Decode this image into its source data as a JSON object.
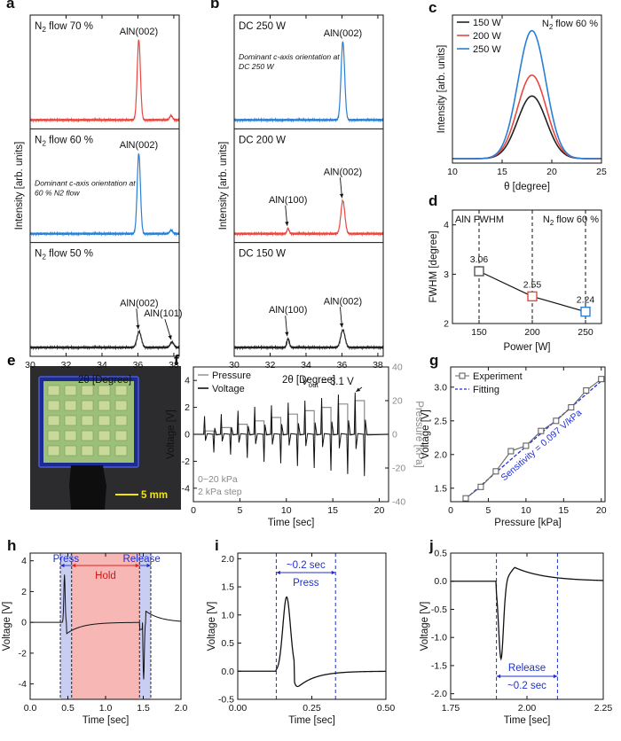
{
  "chart_data": [
    {
      "id": "a",
      "type": "line",
      "panel_label": "a",
      "xlabel": "2θ [Degree]",
      "ylabel": "Intensity [arb. units]",
      "xlim": [
        30,
        38.3
      ],
      "xticks": [
        30,
        32,
        34,
        36,
        38
      ],
      "series": [
        {
          "name": "N2 flow 70 %",
          "color": "#e8483f",
          "peaks": [
            {
              "x": 36.05,
              "h": 0.92,
              "w": 0.09,
              "label": "AlN(002)"
            },
            {
              "x": 37.85,
              "h": 0.05,
              "w": 0.08,
              "label": ""
            }
          ]
        },
        {
          "name": "N2 flow 60 %",
          "color": "#2a7fd4",
          "annotation": "Dominant c-axis orientation at 60 % N2 flow",
          "peaks": [
            {
              "x": 36.05,
              "h": 0.92,
              "w": 0.09,
              "label": "AlN(002)"
            },
            {
              "x": 37.85,
              "h": 0.04,
              "w": 0.08,
              "label": ""
            }
          ]
        },
        {
          "name": "N2 flow 50 %",
          "color": "#222222",
          "peaks": [
            {
              "x": 36.07,
              "h": 0.18,
              "w": 0.12,
              "label": "AlN(002)"
            },
            {
              "x": 37.9,
              "h": 0.06,
              "w": 0.1,
              "label": "AlN(101)"
            }
          ]
        }
      ]
    },
    {
      "id": "b",
      "type": "line",
      "panel_label": "b",
      "xlabel": "2θ [Degree]",
      "ylabel": "Intensity [arb. units]",
      "xlim": [
        30,
        38.3
      ],
      "xticks": [
        30,
        32,
        34,
        36,
        38
      ],
      "series": [
        {
          "name": "DC 250 W",
          "color": "#2a7fd4",
          "annotation": "Dominant c-axis orientation at DC 250 W",
          "peaks": [
            {
              "x": 36.05,
              "h": 0.9,
              "w": 0.1,
              "label": "AlN(002)"
            }
          ]
        },
        {
          "name": "DC 200 W",
          "color": "#e8483f",
          "peaks": [
            {
              "x": 33.0,
              "h": 0.06,
              "w": 0.06,
              "label": "AlN(100)"
            },
            {
              "x": 36.05,
              "h": 0.38,
              "w": 0.11,
              "label": "AlN(002)"
            }
          ]
        },
        {
          "name": "DC 150 W",
          "color": "#222222",
          "peaks": [
            {
              "x": 33.0,
              "h": 0.1,
              "w": 0.07,
              "label": "AlN(100)"
            },
            {
              "x": 36.05,
              "h": 0.2,
              "w": 0.12,
              "label": "AlN(002)"
            }
          ]
        }
      ]
    },
    {
      "id": "c",
      "type": "line",
      "panel_label": "c",
      "xlabel": "θ [degree]",
      "ylabel": "Intensity [arb. units]",
      "xlim": [
        10,
        25
      ],
      "xticks": [
        10,
        15,
        20,
        25
      ],
      "annotation": "N2 flow 60 %",
      "series": [
        {
          "name": "150 W",
          "color": "#222222",
          "center": 18,
          "amplitude": 0.45,
          "sigma": 1.45
        },
        {
          "name": "200 W",
          "color": "#e8483f",
          "center": 18,
          "amplitude": 0.6,
          "sigma": 1.45
        },
        {
          "name": "250 W",
          "color": "#2a7fd4",
          "center": 18,
          "amplitude": 0.92,
          "sigma": 1.4
        }
      ]
    },
    {
      "id": "d",
      "type": "line",
      "panel_label": "d",
      "xlabel": "Power [W]",
      "ylabel": "FWHM [degree]",
      "xlim": [
        125,
        265
      ],
      "ylim": [
        2,
        4.3
      ],
      "xticks": [
        150,
        200,
        250
      ],
      "yticks": [
        2,
        3,
        4
      ],
      "left_note": "AlN FWHM",
      "right_note": "N2 flow 60 %",
      "points": [
        {
          "x": 150,
          "y": 3.06,
          "label": "3.06",
          "color": "#555555"
        },
        {
          "x": 200,
          "y": 2.55,
          "label": "2.55",
          "color": "#e8483f"
        },
        {
          "x": 250,
          "y": 2.24,
          "label": "2.24",
          "color": "#2a7fd4"
        }
      ]
    },
    {
      "id": "f",
      "type": "line",
      "panel_label": "f",
      "xlabel": "Time [sec]",
      "ylabel": "Voltage [V]",
      "y2label": "Pressure [kPa]",
      "xlim": [
        0,
        21
      ],
      "ylim": [
        -5,
        5
      ],
      "y2lim": [
        -40,
        40
      ],
      "xticks": [
        0,
        5,
        10,
        15,
        20
      ],
      "yticks": [
        -4,
        -2,
        0,
        2,
        4
      ],
      "y2ticks": [
        -40,
        -20,
        0,
        20,
        40
      ],
      "legend": [
        "Pressure",
        "Voltage"
      ],
      "note_vout": "= 3.1 V",
      "note_range": "0~20 kPa",
      "note_step": "2 kPa step",
      "press_times": [
        1.2,
        3.0,
        4.8,
        6.6,
        8.4,
        10.2,
        12.0,
        13.8,
        15.6,
        17.4
      ],
      "release_times": [
        2.2,
        4.0,
        5.8,
        7.6,
        9.4,
        11.2,
        13.0,
        14.8,
        16.6,
        18.4
      ],
      "pressure_kpa": [
        2,
        4,
        6,
        8,
        10,
        12,
        14,
        16,
        18,
        20
      ],
      "peak_voltage": [
        1.35,
        1.5,
        1.75,
        2.05,
        2.15,
        2.35,
        2.5,
        2.7,
        2.95,
        3.1
      ]
    },
    {
      "id": "g",
      "type": "scatter",
      "panel_label": "g",
      "xlabel": "Pressure [kPa]",
      "ylabel": "Voltage [V]",
      "xlim": [
        0,
        20.5
      ],
      "ylim": [
        1.3,
        3.3
      ],
      "xticks": [
        0,
        5,
        10,
        15,
        20
      ],
      "yticks": [
        1.5,
        2.0,
        2.5,
        3.0
      ],
      "legend": [
        "Experiment",
        "Fitting"
      ],
      "sensitivity_label": "Sensitivity = 0.097 V/kPa",
      "x": [
        2,
        4,
        6,
        8,
        10,
        12,
        14,
        16,
        18,
        20
      ],
      "y": [
        1.35,
        1.52,
        1.75,
        2.05,
        2.13,
        2.35,
        2.5,
        2.7,
        2.95,
        3.12
      ],
      "fit": {
        "slope": 0.097,
        "intercept": 1.15
      }
    },
    {
      "id": "h",
      "type": "line",
      "panel_label": "h",
      "xlabel": "Time [sec]",
      "ylabel": "Voltage [V]",
      "xlim": [
        0,
        2.0
      ],
      "ylim": [
        -5,
        4.5
      ],
      "xticks": [
        0.0,
        0.5,
        1.0,
        1.5,
        2.0
      ],
      "yticks": [
        -4,
        -2,
        0,
        2,
        4
      ],
      "press_label": "Press",
      "hold_label": "Hold",
      "release_label": "Release",
      "press_window": [
        0.4,
        0.55
      ],
      "hold_window": [
        0.55,
        1.45
      ],
      "release_window": [
        1.45,
        1.6
      ]
    },
    {
      "id": "i",
      "type": "line",
      "panel_label": "i",
      "xlabel": "Time [sec]",
      "ylabel": "Voltage [V]",
      "xlim": [
        0,
        0.5
      ],
      "ylim": [
        -0.5,
        2.1
      ],
      "xticks": [
        0.0,
        0.25,
        0.5
      ],
      "yticks": [
        -0.5,
        0.0,
        0.5,
        1.0,
        1.5,
        2.0
      ],
      "window": [
        0.13,
        0.33
      ],
      "duration_label": "~0.2 sec",
      "event_label": "Press"
    },
    {
      "id": "j",
      "type": "line",
      "panel_label": "j",
      "xlabel": "Time [sec]",
      "ylabel": "Voltage [V]",
      "xlim": [
        1.75,
        2.25
      ],
      "ylim": [
        -2.1,
        0.5
      ],
      "xticks": [
        1.75,
        2.0,
        2.25
      ],
      "yticks": [
        -2.0,
        -1.5,
        -1.0,
        -0.5,
        0.0,
        0.5
      ],
      "window": [
        1.9,
        2.1
      ],
      "duration_label": "~0.2 sec",
      "event_label": "Release"
    }
  ],
  "photo": {
    "panel_label": "e",
    "scale_label": "5 mm"
  },
  "colors": {
    "red": "#e8483f",
    "blue": "#2a7fd4",
    "blue_dash": "#1f2fcf",
    "black": "#222222",
    "gray": "#8a8a8a",
    "hold_fill": "#f6b7b5",
    "press_fill": "#c9cdf1"
  }
}
